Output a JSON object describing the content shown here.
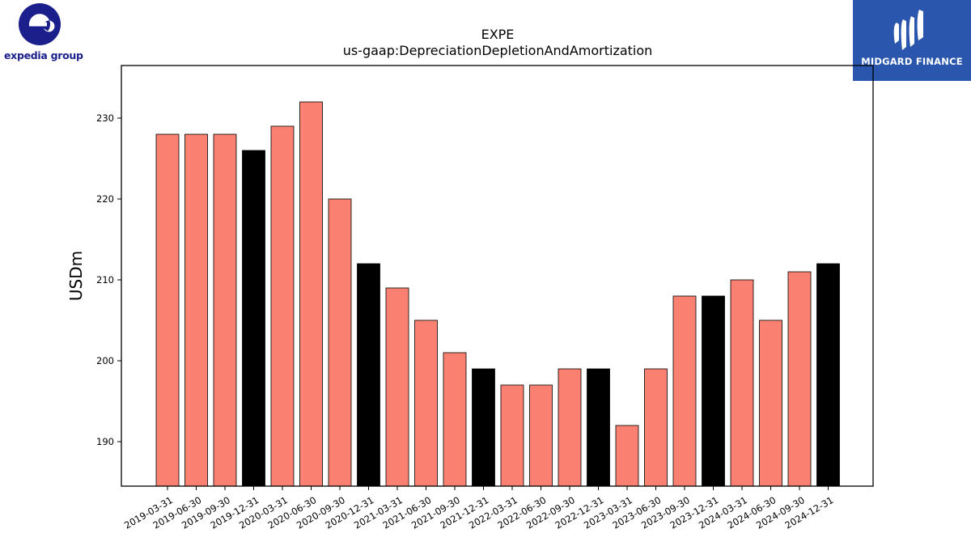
{
  "branding": {
    "left_logo_text": "expedia group",
    "right_logo_text": "MIDGARD FINANCE"
  },
  "colors": {
    "bar_default": "#fa8072",
    "bar_highlight": "#000000",
    "logo_left": "#1a1f8c",
    "logo_right_bg": "#2a57ad"
  },
  "chart_data": {
    "type": "bar",
    "title": "EXPE",
    "subtitle": "us-gaap:DepreciationDepletionAndAmortization",
    "xlabel": "",
    "ylabel": "USDm",
    "ylim": [
      184.5,
      236.5
    ],
    "yticks": [
      190,
      200,
      210,
      220,
      230
    ],
    "grid": false,
    "categories": [
      "2019-03-31",
      "2019-06-30",
      "2019-09-30",
      "2019-12-31",
      "2020-03-31",
      "2020-06-30",
      "2020-09-30",
      "2020-12-31",
      "2021-03-31",
      "2021-06-30",
      "2021-09-30",
      "2021-12-31",
      "2022-03-31",
      "2022-06-30",
      "2022-09-30",
      "2022-12-31",
      "2023-03-31",
      "2023-06-30",
      "2023-09-30",
      "2023-12-31",
      "2024-03-31",
      "2024-06-30",
      "2024-09-30",
      "2024-12-31"
    ],
    "values": [
      228,
      228,
      228,
      226,
      229,
      232,
      220,
      212,
      209,
      205,
      201,
      199,
      197,
      197,
      199,
      199,
      192,
      199,
      208,
      208,
      210,
      205,
      211,
      212
    ],
    "highlight_note": "year-end quarters (12-31) drawn in black"
  }
}
